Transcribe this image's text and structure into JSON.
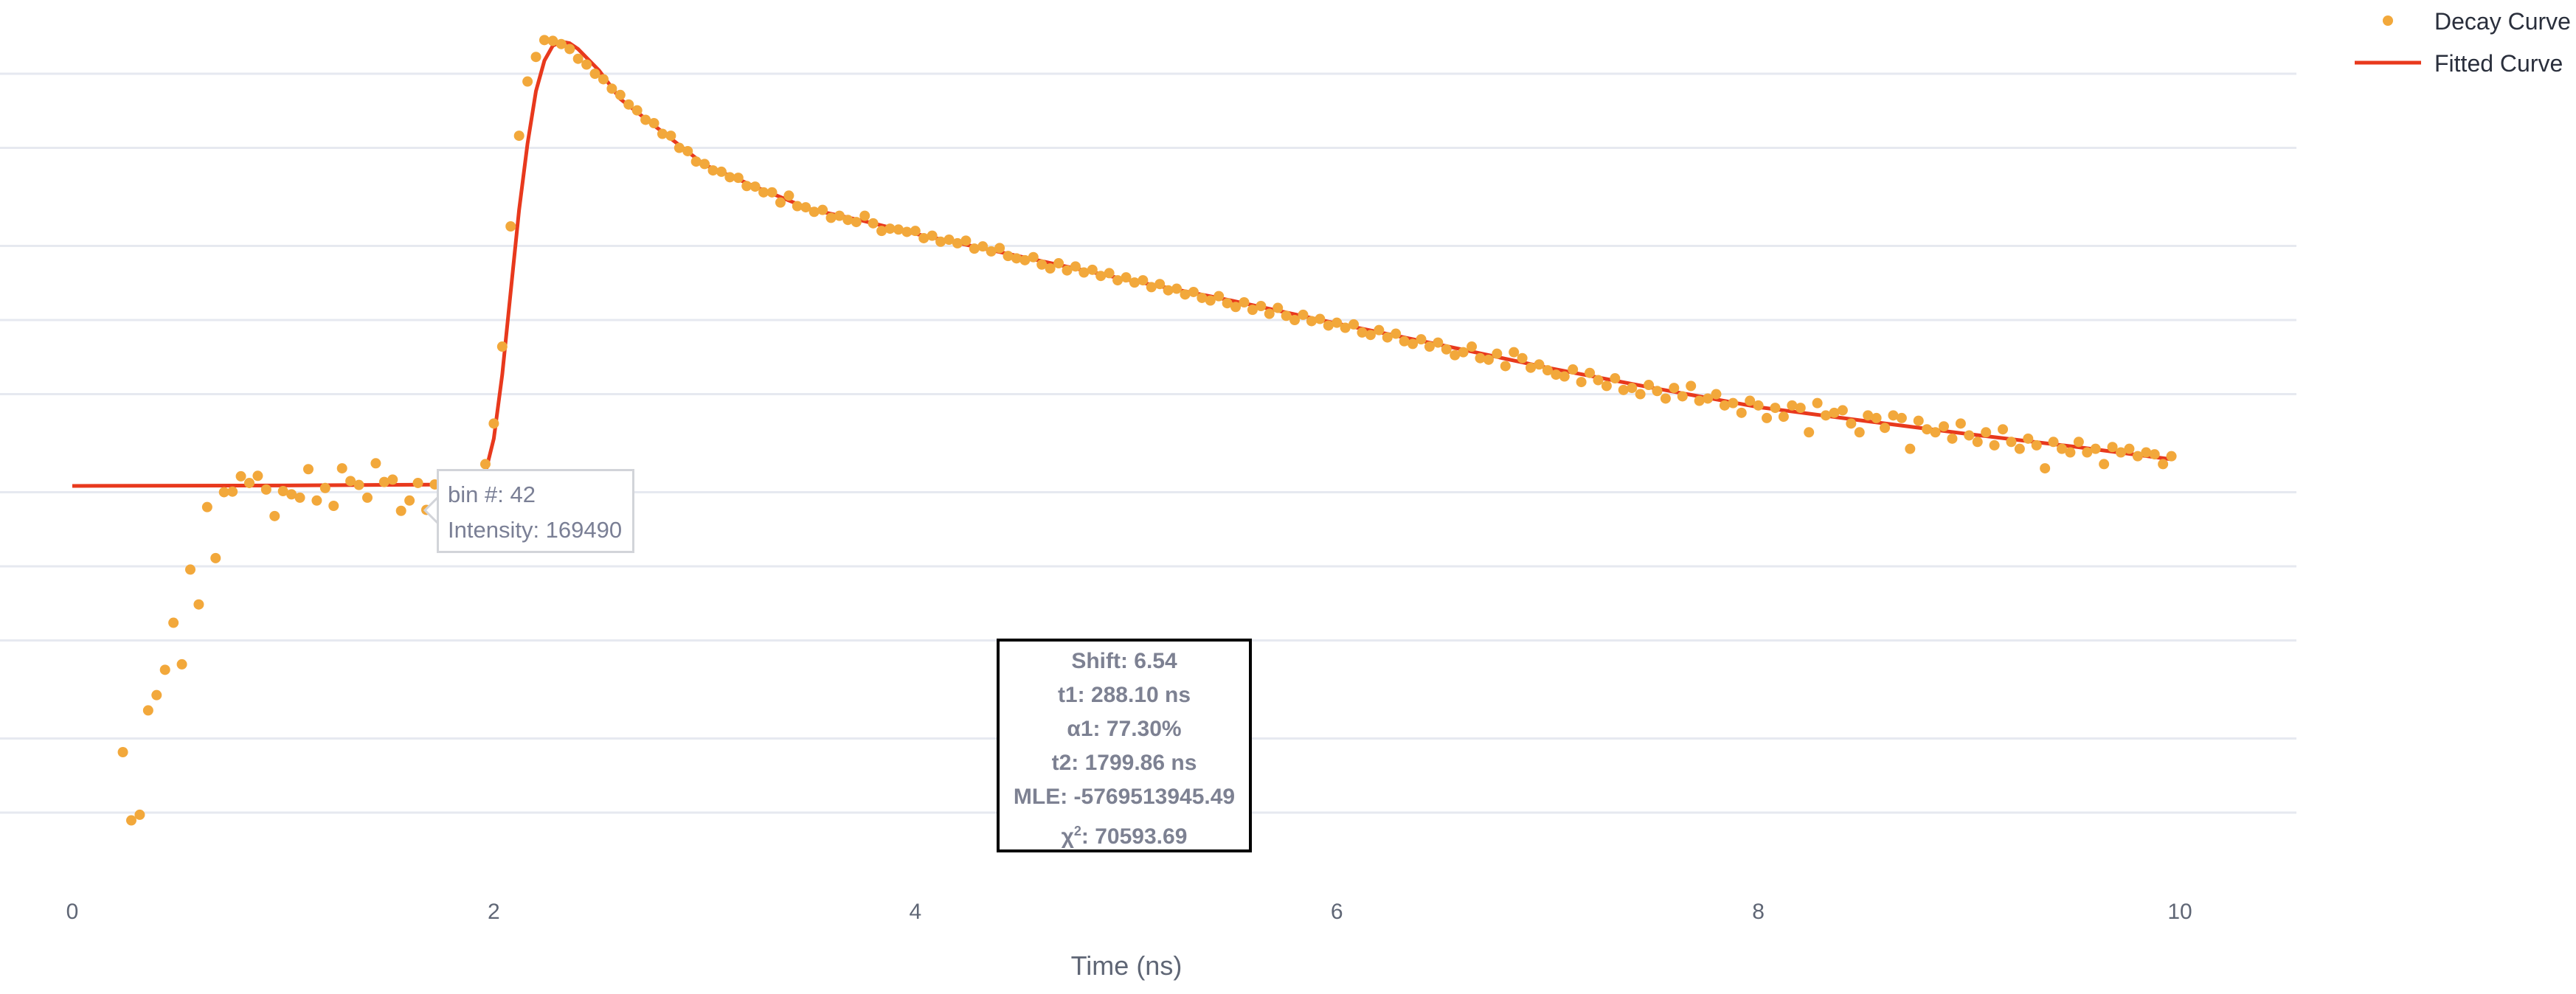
{
  "chart_data": {
    "type": "scatter",
    "xlabel": "Time (ns)",
    "ylabel": "",
    "y_scale": "log",
    "xlim": [
      0,
      10
    ],
    "ylim": [
      5800,
      20000000
    ],
    "x_ticks": [
      0,
      2,
      4,
      6,
      8,
      10
    ],
    "x_tick_labels": [
      "0",
      "2",
      "4",
      "6",
      "8",
      "10"
    ],
    "y_grid_values": [
      10000,
      20000,
      50000,
      100000,
      200000,
      500000,
      1000000,
      2000000,
      5000000,
      10000000
    ],
    "grid": true,
    "legend_position": "top-right",
    "colors": {
      "decay": "#f2a83b",
      "fit": "#e8391d",
      "grid": "#e6e9f0"
    },
    "series": [
      {
        "name": "Decay Curve",
        "mode": "markers",
        "bin_start": 6,
        "bin_width_ns": 0.04,
        "values": [
          17600,
          9300,
          9800,
          26000,
          30000,
          38000,
          59000,
          40000,
          97000,
          70000,
          174000,
          108000,
          200000,
          201000,
          232000,
          218000,
          233000,
          205000,
          160000,
          202000,
          196000,
          190000,
          248000,
          185000,
          208000,
          176000,
          250000,
          222000,
          214000,
          190000,
          262000,
          220000,
          225000,
          168000,
          185000,
          218000,
          169490,
          215000,
          205000,
          198000,
          210000,
          220000,
          230000,
          260000,
          380000,
          780000,
          2400000,
          5600000,
          9300000,
          11700000,
          13700000,
          13600000,
          13200000,
          12600000,
          11500000,
          10900000,
          10000000,
          9500000,
          8700000,
          8200000,
          7500000,
          7100000,
          6500000,
          6300000,
          5700000,
          5600000,
          5000000,
          4850000,
          4400000,
          4300000,
          4050000,
          4000000,
          3800000,
          3780000,
          3500000,
          3480000,
          3300000,
          3300000,
          3000000,
          3200000,
          2900000,
          2870000,
          2750000,
          2800000,
          2600000,
          2650000,
          2550000,
          2500000,
          2650000,
          2470000,
          2300000,
          2350000,
          2330000,
          2280000,
          2300000,
          2150000,
          2200000,
          2080000,
          2120000,
          2050000,
          2100000,
          1950000,
          1990000,
          1900000,
          1960000,
          1820000,
          1780000,
          1750000,
          1800000,
          1680000,
          1620000,
          1700000,
          1590000,
          1650000,
          1560000,
          1600000,
          1510000,
          1550000,
          1450000,
          1490000,
          1420000,
          1450000,
          1360000,
          1400000,
          1320000,
          1340000,
          1270000,
          1300000,
          1230000,
          1200000,
          1250000,
          1170000,
          1130000,
          1180000,
          1100000,
          1140000,
          1060000,
          1120000,
          1040000,
          1000000,
          1050000,
          990000,
          1010000,
          950000,
          975000,
          930000,
          960000,
          890000,
          870000,
          910000,
          850000,
          880000,
          820000,
          800000,
          835000,
          780000,
          810000,
          760000,
          720000,
          740000,
          780000,
          700000,
          690000,
          730000,
          650000,
          740000,
          700000,
          640000,
          660000,
          625000,
          600000,
          590000,
          630000,
          560000,
          610000,
          570000,
          540000,
          580000,
          520000,
          530000,
          500000,
          545000,
          515000,
          480000,
          530000,
          490000,
          540000,
          470000,
          480000,
          500000,
          450000,
          460000,
          420000,
          470000,
          450000,
          400000,
          440000,
          405000,
          450000,
          440000,
          350000,
          460000,
          410000,
          420000,
          430000,
          380000,
          350000,
          410000,
          400000,
          365000,
          410000,
          400000,
          300000,
          390000,
          360000,
          350000,
          370000,
          330000,
          380000,
          340000,
          320000,
          350000,
          310000,
          360000,
          320000,
          300000,
          330000,
          310000,
          250000,
          320000,
          300000,
          290000,
          320000,
          290000,
          300000,
          260000,
          305000,
          290000,
          300000,
          280000,
          290000,
          285000,
          260000,
          280000
        ]
      },
      {
        "name": "Fitted Curve",
        "mode": "lines",
        "points": [
          [
            0,
            212000
          ],
          [
            1,
            213000
          ],
          [
            1.9,
            215000
          ],
          [
            1.96,
            240000
          ],
          [
            2.0,
            330000
          ],
          [
            2.04,
            600000
          ],
          [
            2.08,
            1300000
          ],
          [
            2.12,
            2800000
          ],
          [
            2.16,
            5200000
          ],
          [
            2.2,
            8500000
          ],
          [
            2.24,
            11300000
          ],
          [
            2.28,
            13000000
          ],
          [
            2.32,
            13500000
          ],
          [
            2.36,
            13300000
          ],
          [
            2.4,
            12600000
          ],
          [
            2.5,
            10300000
          ],
          [
            2.6,
            7900000
          ],
          [
            2.8,
            5800000
          ],
          [
            3.0,
            4270000
          ],
          [
            3.25,
            3450000
          ],
          [
            3.5,
            2820000
          ],
          [
            3.75,
            2530000
          ],
          [
            4.0,
            2240000
          ],
          [
            4.5,
            1810000
          ],
          [
            5.0,
            1460000
          ],
          [
            5.5,
            1200000
          ],
          [
            6.0,
            968000
          ],
          [
            6.5,
            790000
          ],
          [
            7.0,
            640000
          ],
          [
            7.5,
            530000
          ],
          [
            8.0,
            443000
          ],
          [
            8.5,
            390000
          ],
          [
            9.0,
            344000
          ],
          [
            9.5,
            306000
          ],
          [
            9.96,
            272000
          ]
        ]
      }
    ],
    "hover": {
      "bin_label": "bin #: 42",
      "intensity_label": "Intensity: 169490",
      "bin": 42,
      "intensity": 169490
    },
    "stats": {
      "shift": "Shift: 6.54",
      "t1": "t1: 288.10 ns",
      "a1": "α1: 77.30%",
      "t2": "t2: 1799.86 ns",
      "mle": "MLE: -5769513945.49",
      "chi2_prefix": "χ",
      "chi2_sup": "2",
      "chi2_value": ": 70593.69"
    }
  }
}
